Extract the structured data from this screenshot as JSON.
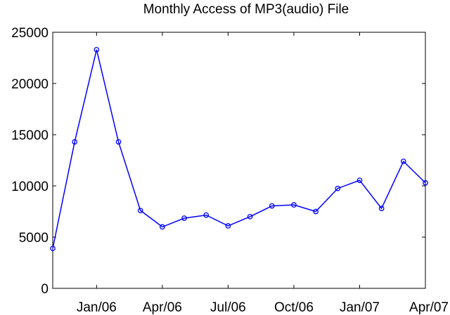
{
  "chart_data": {
    "type": "line",
    "title": "Monthly Access of MP3(audio) File",
    "xlabel": "",
    "ylabel": "",
    "ylim": [
      0,
      25000
    ],
    "y_ticks": [
      0,
      5000,
      10000,
      15000,
      20000,
      25000
    ],
    "x_ticks": [
      "Jan/06",
      "Apr/06",
      "Jul/06",
      "Oct/06",
      "Jan/07",
      "Apr/07"
    ],
    "x": [
      "Nov/05",
      "Dec/05",
      "Jan/06",
      "Feb/06",
      "Mar/06",
      "Apr/06",
      "May/06",
      "Jun/06",
      "Jul/06",
      "Aug/06",
      "Sep/06",
      "Oct/06",
      "Nov/06",
      "Dec/06",
      "Jan/07",
      "Feb/07",
      "Mar/07",
      "Apr/07"
    ],
    "values": [
      3900,
      14300,
      23300,
      14300,
      7600,
      6000,
      6850,
      7150,
      6100,
      7000,
      8050,
      8150,
      7500,
      9750,
      10550,
      7800,
      12400,
      10300
    ],
    "line_color": "#0000ff",
    "grid": false,
    "legend": "none"
  }
}
